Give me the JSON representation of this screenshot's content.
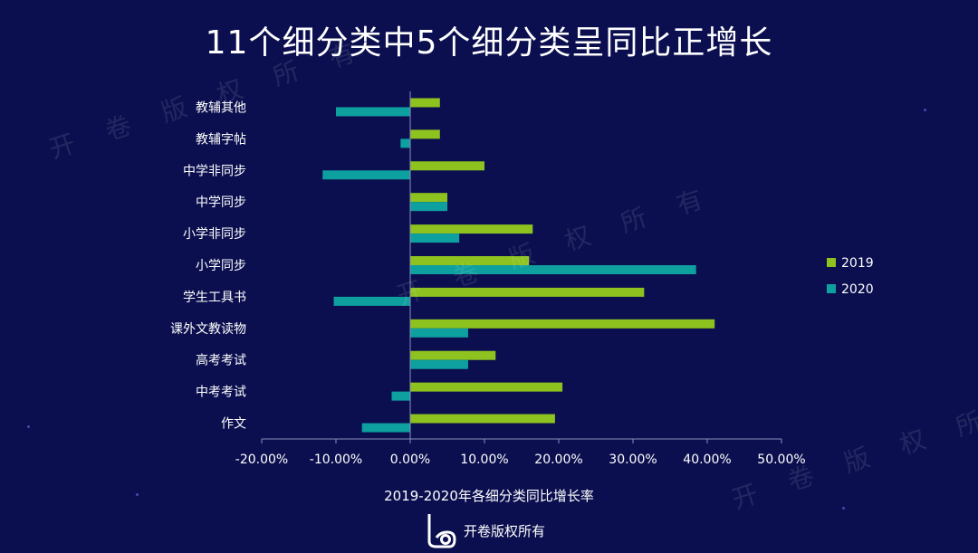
{
  "title": "11个细分类中5个细分类呈同比正增长",
  "watermark_text": "开 卷 版 权 所 有",
  "colors": {
    "background": "#0b0f4f",
    "series_2019": "#8dc21f",
    "series_2020": "#0e9f9f",
    "axis": "#8a8fb8"
  },
  "footer": {
    "logo_icon": "openbook-logo-icon",
    "text": "开卷版权所有"
  },
  "chart_data": {
    "type": "bar",
    "orientation": "horizontal",
    "title": "11个细分类中5个细分类呈同比正增长",
    "xlabel": "2019-2020年各细分类同比增长率",
    "ylabel": "",
    "xlim": [
      -0.2,
      0.5
    ],
    "x_ticks": [
      "-20.00%",
      "-10.00%",
      "0.00%",
      "10.00%",
      "20.00%",
      "30.00%",
      "40.00%",
      "50.00%"
    ],
    "x_tick_values": [
      -0.2,
      -0.1,
      0.0,
      0.1,
      0.2,
      0.3,
      0.4,
      0.5
    ],
    "grid": false,
    "legend_position": "right",
    "categories": [
      "教辅其他",
      "教辅字帖",
      "中学非同步",
      "中学同步",
      "小学非同步",
      "小学同步",
      "学生工具书",
      "课外文教读物",
      "高考考试",
      "中考考试",
      "作文"
    ],
    "series": [
      {
        "name": "2019",
        "values": [
          0.04,
          0.04,
          0.1,
          0.05,
          0.165,
          0.16,
          0.315,
          0.41,
          0.115,
          0.205,
          0.195
        ]
      },
      {
        "name": "2020",
        "values": [
          -0.1,
          -0.013,
          -0.118,
          0.05,
          0.066,
          0.385,
          -0.103,
          0.078,
          0.078,
          -0.025,
          -0.065
        ]
      }
    ]
  }
}
